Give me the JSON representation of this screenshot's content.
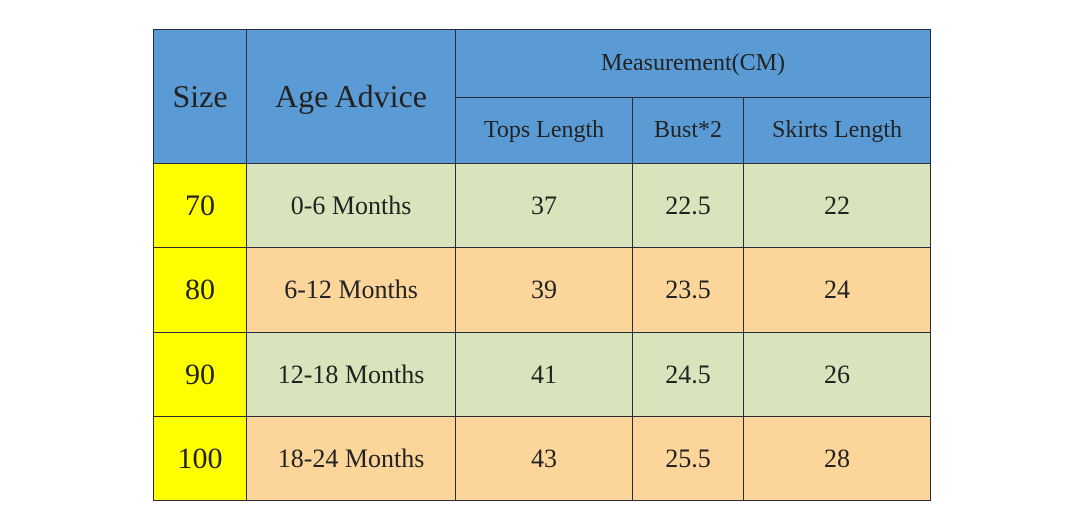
{
  "table": {
    "header": {
      "size": "Size",
      "age": "Age Advice",
      "group": "Measurement(CM)",
      "columns": [
        "Tops Length",
        "Bust*2",
        "Skirts Length"
      ]
    },
    "rows": [
      [
        "70",
        "0-6 Months",
        "37",
        "22.5",
        "22"
      ],
      [
        "80",
        "6-12 Months",
        "39",
        "23.5",
        "24"
      ],
      [
        "90",
        "12-18 Months",
        "41",
        "24.5",
        "26"
      ],
      [
        "100",
        "18-24 Months",
        "43",
        "25.5",
        "28"
      ]
    ]
  }
}
